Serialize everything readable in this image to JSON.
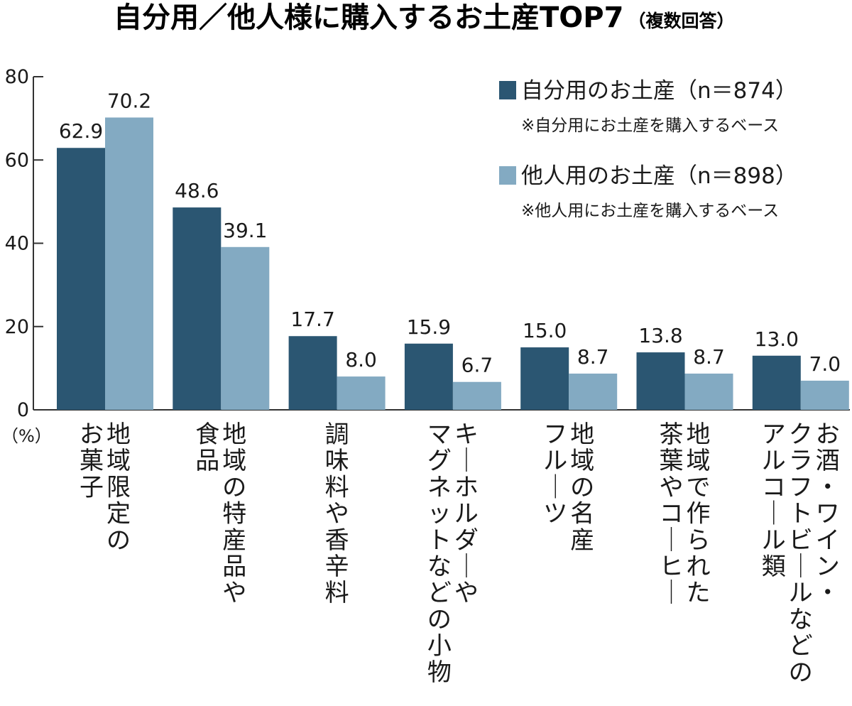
{
  "title": "自分用／他人様に購入するお土産TOP7",
  "subtitle": "（複数回答）",
  "colors": {
    "self": "#2b5672",
    "others": "#83aac2",
    "axis": "#333333",
    "text": "#1a1a1a"
  },
  "chart_data": {
    "type": "bar",
    "categories": [
      "地域限定の\nお菓子",
      "地域の特産品や\n食品",
      "調味料や香辛料",
      "キーホルダーや\nマグネットなどの小物",
      "地域の名産\nフルーツ",
      "地域で作られた\n茶葉やコーヒー",
      "お酒・ワイン・\nクラフトビールなどの\nアルコール類"
    ],
    "series": [
      {
        "name": "自分用のお土産（n＝874）",
        "note": "※自分用にお土産を購入するベース",
        "values": [
          62.9,
          48.6,
          17.7,
          15.9,
          15.0,
          13.8,
          13.0
        ],
        "labels": [
          "62.9",
          "48.6",
          "17.7",
          "15.9",
          "15.0",
          "13.8",
          "13.0"
        ]
      },
      {
        "name": "他人用のお土産（n＝898）",
        "note": "※他人用にお土産を購入するベース",
        "values": [
          70.2,
          39.1,
          8.0,
          6.7,
          8.7,
          8.7,
          7.0
        ],
        "labels": [
          "70.2",
          "39.1",
          "8.0",
          "6.7",
          "8.7",
          "8.7",
          "7.0"
        ]
      }
    ],
    "ylim": [
      0,
      80
    ],
    "yticks": [
      0,
      20,
      40,
      60,
      80
    ],
    "yunit": "（%）",
    "legend": "top-right",
    "grid": false
  }
}
